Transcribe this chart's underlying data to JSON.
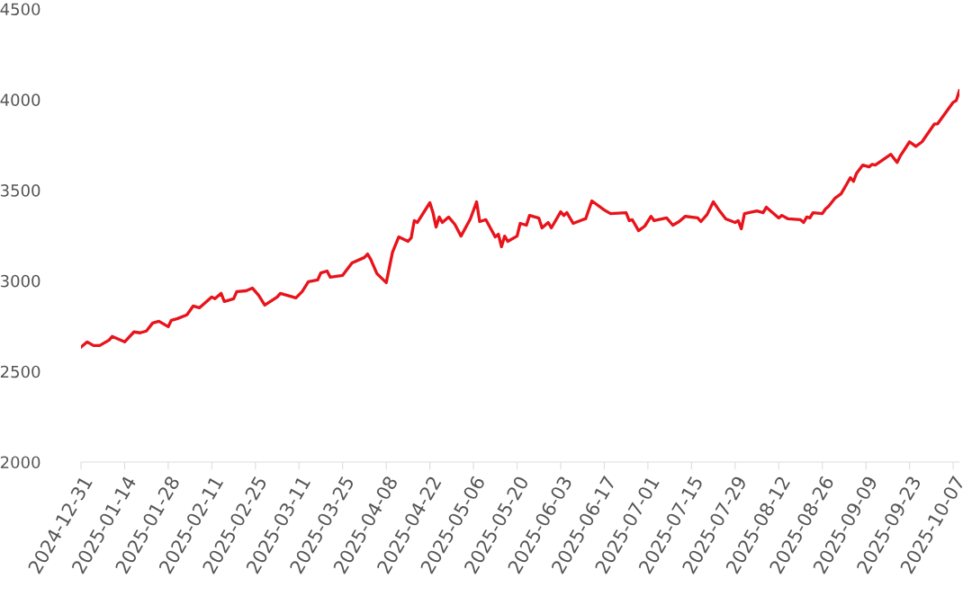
{
  "chart_data": {
    "type": "line",
    "x": [
      "2024-12-31",
      "2025-01-02",
      "2025-01-04",
      "2025-01-06",
      "2025-01-09",
      "2025-01-10",
      "2025-01-14",
      "2025-01-17",
      "2025-01-19",
      "2025-01-21",
      "2025-01-23",
      "2025-01-25",
      "2025-01-28",
      "2025-01-29",
      "2025-01-31",
      "2025-02-03",
      "2025-02-05",
      "2025-02-07",
      "2025-02-11",
      "2025-02-12",
      "2025-02-14",
      "2025-02-15",
      "2025-02-18",
      "2025-02-19",
      "2025-02-22",
      "2025-02-24",
      "2025-02-26",
      "2025-02-28",
      "2025-03-04",
      "2025-03-05",
      "2025-03-10",
      "2025-03-12",
      "2025-03-14",
      "2025-03-17",
      "2025-03-18",
      "2025-03-20",
      "2025-03-21",
      "2025-03-25",
      "2025-03-28",
      "2025-04-01",
      "2025-04-02",
      "2025-04-03",
      "2025-04-05",
      "2025-04-08",
      "2025-04-10",
      "2025-04-12",
      "2025-04-15",
      "2025-04-16",
      "2025-04-17",
      "2025-04-18",
      "2025-04-22",
      "2025-04-23",
      "2025-04-24",
      "2025-04-25",
      "2025-04-26",
      "2025-04-28",
      "2025-04-30",
      "2025-05-02",
      "2025-05-05",
      "2025-05-07",
      "2025-05-08",
      "2025-05-10",
      "2025-05-13",
      "2025-05-14",
      "2025-05-15",
      "2025-05-16",
      "2025-05-17",
      "2025-05-20",
      "2025-05-21",
      "2025-05-23",
      "2025-05-24",
      "2025-05-27",
      "2025-05-28",
      "2025-05-30",
      "2025-05-31",
      "2025-06-03",
      "2025-06-04",
      "2025-06-05",
      "2025-06-07",
      "2025-06-10",
      "2025-06-11",
      "2025-06-13",
      "2025-06-17",
      "2025-06-18",
      "2025-06-19",
      "2025-06-24",
      "2025-06-25",
      "2025-06-26",
      "2025-06-28",
      "2025-06-30",
      "2025-07-02",
      "2025-07-03",
      "2025-07-07",
      "2025-07-09",
      "2025-07-11",
      "2025-07-13",
      "2025-07-17",
      "2025-07-18",
      "2025-07-20",
      "2025-07-22",
      "2025-07-24",
      "2025-07-26",
      "2025-07-29",
      "2025-07-30",
      "2025-07-31",
      "2025-08-01",
      "2025-08-05",
      "2025-08-07",
      "2025-08-08",
      "2025-08-12",
      "2025-08-13",
      "2025-08-15",
      "2025-08-19",
      "2025-08-20",
      "2025-08-21",
      "2025-08-22",
      "2025-08-23",
      "2025-08-26",
      "2025-08-27",
      "2025-08-28",
      "2025-08-30",
      "2025-09-01",
      "2025-09-03",
      "2025-09-04",
      "2025-09-05",
      "2025-09-06",
      "2025-09-08",
      "2025-09-10",
      "2025-09-11",
      "2025-09-12",
      "2025-09-17",
      "2025-09-19",
      "2025-09-20",
      "2025-09-23",
      "2025-09-25",
      "2025-09-27",
      "2025-10-01",
      "2025-10-02",
      "2025-10-07",
      "2025-10-08",
      "2025-10-09"
    ],
    "series": [
      {
        "color": "#e8131b",
        "values": [
          2634,
          2663,
          2643,
          2643,
          2673,
          2693,
          2663,
          2718,
          2713,
          2723,
          2767,
          2777,
          2747,
          2782,
          2792,
          2812,
          2861,
          2851,
          2911,
          2901,
          2931,
          2886,
          2901,
          2941,
          2945,
          2960,
          2921,
          2866,
          2911,
          2931,
          2906,
          2941,
          2995,
          3005,
          3044,
          3054,
          3020,
          3030,
          3099,
          3129,
          3148,
          3119,
          3040,
          2990,
          3158,
          3242,
          3218,
          3237,
          3332,
          3322,
          3431,
          3376,
          3297,
          3352,
          3322,
          3352,
          3312,
          3247,
          3342,
          3436,
          3327,
          3337,
          3242,
          3257,
          3188,
          3247,
          3218,
          3247,
          3317,
          3307,
          3361,
          3346,
          3292,
          3322,
          3292,
          3381,
          3361,
          3376,
          3317,
          3337,
          3342,
          3441,
          3391,
          3381,
          3371,
          3376,
          3332,
          3337,
          3277,
          3302,
          3356,
          3332,
          3347,
          3307,
          3327,
          3356,
          3347,
          3327,
          3366,
          3436,
          3386,
          3342,
          3322,
          3332,
          3287,
          3371,
          3386,
          3376,
          3406,
          3347,
          3361,
          3342,
          3337,
          3322,
          3352,
          3347,
          3376,
          3371,
          3396,
          3411,
          3455,
          3480,
          3539,
          3569,
          3549,
          3594,
          3639,
          3629,
          3643,
          3639,
          3698,
          3653,
          3688,
          3767,
          3742,
          3767,
          3866,
          3866,
          3985,
          3995,
          4049
        ]
      }
    ],
    "xlim": [
      "2024-12-31",
      "2025-10-09"
    ],
    "xticks": [
      {
        "value": "2024-12-31",
        "label": "2024-12-31"
      },
      {
        "value": "2025-01-14",
        "label": "2025-01-14"
      },
      {
        "value": "2025-01-28",
        "label": "2025-01-28"
      },
      {
        "value": "2025-02-11",
        "label": "2025-02-11"
      },
      {
        "value": "2025-02-25",
        "label": "2025-02-25"
      },
      {
        "value": "2025-03-11",
        "label": "2025-03-11"
      },
      {
        "value": "2025-03-25",
        "label": "2025-03-25"
      },
      {
        "value": "2025-04-08",
        "label": "2025-04-08"
      },
      {
        "value": "2025-04-22",
        "label": "2025-04-22"
      },
      {
        "value": "2025-05-06",
        "label": "2025-05-06"
      },
      {
        "value": "2025-05-20",
        "label": "2025-05-20"
      },
      {
        "value": "2025-06-03",
        "label": "2025-06-03"
      },
      {
        "value": "2025-06-17",
        "label": "2025-06-17"
      },
      {
        "value": "2025-07-01",
        "label": "2025-07-01"
      },
      {
        "value": "2025-07-15",
        "label": "2025-07-15"
      },
      {
        "value": "2025-07-29",
        "label": "2025-07-29"
      },
      {
        "value": "2025-08-12",
        "label": "2025-08-12"
      },
      {
        "value": "2025-08-26",
        "label": "2025-08-26"
      },
      {
        "value": "2025-09-09",
        "label": "2025-09-09"
      },
      {
        "value": "2025-09-23",
        "label": "2025-09-23"
      },
      {
        "value": "2025-10-07",
        "label": "2025-10-07"
      }
    ],
    "ylim": [
      2000,
      4500
    ],
    "yticks": [
      2000,
      2500,
      3000,
      3500,
      4000,
      4500
    ],
    "grid": false,
    "marker": "none",
    "line_style": "solid"
  }
}
